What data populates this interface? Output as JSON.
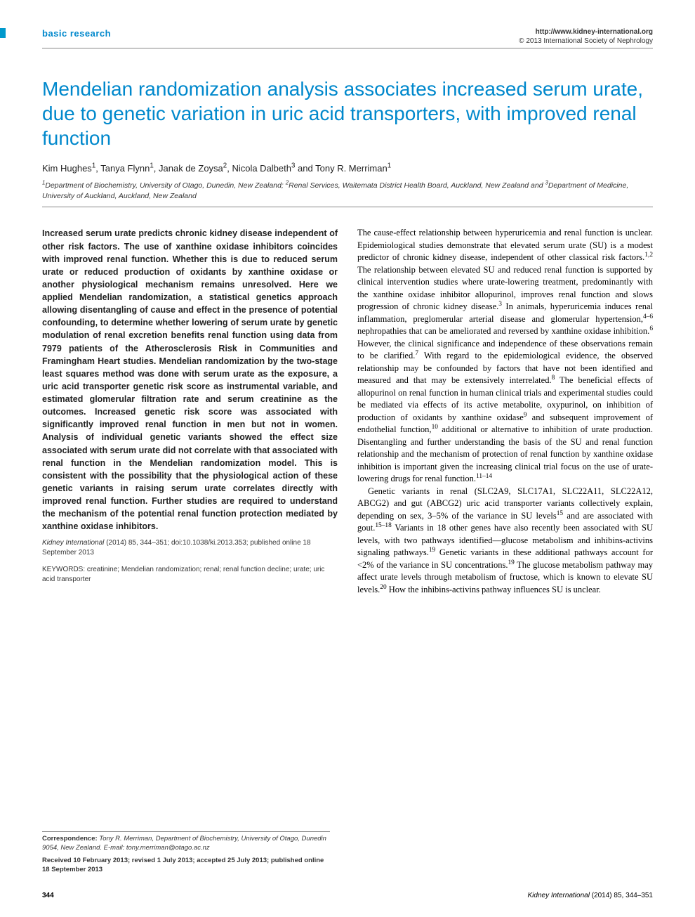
{
  "header": {
    "section_label": "basic research",
    "url": "http://www.kidney-international.org",
    "copyright": "© 2013 International Society of Nephrology"
  },
  "title": "Mendelian randomization analysis associates increased serum urate, due to genetic variation in uric acid transporters, with improved renal function",
  "authors_html": "Kim Hughes<sup>1</sup>, Tanya Flynn<sup>1</sup>, Janak de Zoysa<sup>2</sup>, Nicola Dalbeth<sup>3</sup> and Tony R. Merriman<sup>1</sup>",
  "affiliations_html": "<sup>1</sup>Department of Biochemistry, University of Otago, Dunedin, New Zealand; <sup>2</sup>Renal Services, Waitemata District Health Board, Auckland, New Zealand and <sup>3</sup>Department of Medicine, University of Auckland, Auckland, New Zealand",
  "abstract": "Increased serum urate predicts chronic kidney disease independent of other risk factors. The use of xanthine oxidase inhibitors coincides with improved renal function. Whether this is due to reduced serum urate or reduced production of oxidants by xanthine oxidase or another physiological mechanism remains unresolved. Here we applied Mendelian randomization, a statistical genetics approach allowing disentangling of cause and effect in the presence of potential confounding, to determine whether lowering of serum urate by genetic modulation of renal excretion benefits renal function using data from 7979 patients of the Atherosclerosis Risk in Communities and Framingham Heart studies. Mendelian randomization by the two-stage least squares method was done with serum urate as the exposure, a uric acid transporter genetic risk score as instrumental variable, and estimated glomerular filtration rate and serum creatinine as the outcomes. Increased genetic risk score was associated with significantly improved renal function in men but not in women. Analysis of individual genetic variants showed the effect size associated with serum urate did not correlate with that associated with renal function in the Mendelian randomization model. This is consistent with the possibility that the physiological action of these genetic variants in raising serum urate correlates directly with improved renal function. Further studies are required to understand the mechanism of the potential renal function protection mediated by xanthine oxidase inhibitors.",
  "citation": {
    "journal": "Kidney International",
    "details": "(2014) 85, 344–351; doi:10.1038/ki.2013.353; published online 18 September 2013"
  },
  "keywords": {
    "label": "KEYWORDS:",
    "text": "creatinine; Mendelian randomization; renal; renal function decline; urate; uric acid transporter"
  },
  "body_p1_html": "The cause-effect relationship between hyperuricemia and renal function is unclear. Epidemiological studies demonstrate that elevated serum urate (SU) is a modest predictor of chronic kidney disease, independent of other classical risk factors.<sup>1,2</sup> The relationship between elevated SU and reduced renal function is supported by clinical intervention studies where urate-lowering treatment, predominantly with the xanthine oxidase inhibitor allopurinol, improves renal function and slows progression of chronic kidney disease.<sup>3</sup> In animals, hyperuricemia induces renal inflammation, preglomerular arterial disease and glomerular hypertension,<sup>4–6</sup> nephropathies that can be ameliorated and reversed by xanthine oxidase inhibition.<sup>6</sup> However, the clinical significance and independence of these observations remain to be clarified.<sup>7</sup> With regard to the epidemiological evidence, the observed relationship may be confounded by factors that have not been identified and measured and that may be extensively interrelated.<sup>8</sup> The beneficial effects of allopurinol on renal function in human clinical trials and experimental studies could be mediated via effects of its active metabolite, oxypurinol, on inhibition of production of oxidants by xanthine oxidase<sup>9</sup> and subsequent improvement of endothelial function,<sup>10</sup> additional or alternative to inhibition of urate production. Disentangling and further understanding the basis of the SU and renal function relationship and the mechanism of protection of renal function by xanthine oxidase inhibition is important given the increasing clinical trial focus on the use of urate-lowering drugs for renal function.<sup>11–14</sup>",
  "body_p2_html": "Genetic variants in renal (SLC2A9, SLC17A1, SLC22A11, SLC22A12, ABCG2) and gut (ABCG2) uric acid transporter variants collectively explain, depending on sex, 3–5% of the variance in SU levels<sup>15</sup> and are associated with gout.<sup>15–18</sup> Variants in 18 other genes have also recently been associated with SU levels, with two pathways identified—glucose metabolism and inhibins-activins signaling pathways.<sup>19</sup> Genetic variants in these additional pathways account for <2% of the variance in SU concentrations.<sup>19</sup> The glucose metabolism pathway may affect urate levels through metabolism of fructose, which is known to elevate SU levels.<sup>20</sup> How the inhibins-activins pathway influences SU is unclear.",
  "correspondence_html": "<b>Correspondence:</b> Tony R. Merriman, Department of Biochemistry, University of Otago, Dunedin 9054, New Zealand. E-mail: tony.merriman@otago.ac.nz",
  "received": "Received 10 February 2013; revised 1 July 2013; accepted 25 July 2013; published online 18 September 2013",
  "footer": {
    "page": "344",
    "journal": "Kidney International",
    "details": "(2014) 85, 344–351"
  }
}
